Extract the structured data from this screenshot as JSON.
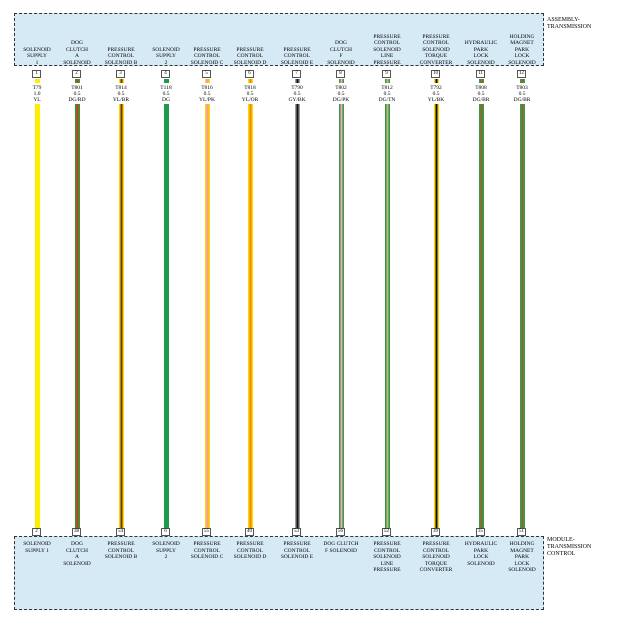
{
  "top_assembly": "ASSEMBLY-\nTRANSMISSION",
  "bottom_module": "MODULE-\nTRANSMISSION\nCONTROL",
  "circuits": [
    {
      "top_label": "SOLENOID\nSUPPLY\n1",
      "top_pin": "1",
      "circuit": "T79",
      "gauge": "1.0",
      "color_code": "YL",
      "bottom_pin": "2",
      "bottom_label": "SOLENOID\nSUPPLY 1",
      "base_color": "#ffee00",
      "stripe_color": "#ffee00"
    },
    {
      "top_label": "DOG\nCLUTCH\nA\nSOLENOID",
      "top_pin": "2",
      "circuit": "T801",
      "gauge": "0.5",
      "color_code": "DG/RD",
      "bottom_pin": "38",
      "bottom_label": "DOG\nCLUTCH\nA\nSOLENOID",
      "base_color": "#2e9a3a",
      "stripe_color": "#d23a1e"
    },
    {
      "top_label": "PRESSURE\nCONTROL\nSOLENOID B",
      "top_pin": "3",
      "circuit": "T814",
      "gauge": "0.5",
      "color_code": "YL/BR",
      "bottom_pin": "54",
      "bottom_label": "PRESSURE\nCONTROL\nSOLENOID B",
      "base_color": "#ffd400",
      "stripe_color": "#6b3a10"
    },
    {
      "top_label": "SOLENOID\nSUPPLY\n2",
      "top_pin": "4",
      "circuit": "T118",
      "gauge": "0.5",
      "color_code": "DG",
      "bottom_pin": "6",
      "bottom_label": "SOLENOID\nSUPPLY\n2",
      "base_color": "#1e9a4a",
      "stripe_color": "#1e9a4a"
    },
    {
      "top_label": "PRESSURE\nCONTROL\nSOLENOID C",
      "top_pin": "5",
      "circuit": "T816",
      "gauge": "0.5",
      "color_code": "YL/PK",
      "bottom_pin": "55",
      "bottom_label": "PRESSURE\nCONTROL\nSOLENOID C",
      "base_color": "#ffd400",
      "stripe_color": "#f29ab0"
    },
    {
      "top_label": "PRESSURE\nCONTROL\nSOLENOID D",
      "top_pin": "6",
      "circuit": "T818",
      "gauge": "0.5",
      "color_code": "YL/OR",
      "bottom_pin": "40",
      "bottom_label": "PRESSURE\nCONTROL\nSOLENOID D",
      "base_color": "#ffd400",
      "stripe_color": "#f08a00"
    },
    {
      "top_label": "PRESSURE\nCONTROL\nSOLENOID E",
      "top_pin": "7",
      "circuit": "T790",
      "gauge": "0.5",
      "color_code": "GY/BK",
      "bottom_pin": "53",
      "bottom_label": "PRESSURE\nCONTROL\nSOLENOID E",
      "base_color": "#9a9a9a",
      "stripe_color": "#111111"
    },
    {
      "top_label": "DOG\nCLUTCH\nF\nSOLENOID",
      "top_pin": "8",
      "circuit": "T802",
      "gauge": "0.5",
      "color_code": "DG/PK",
      "bottom_pin": "56",
      "bottom_label": "DOG CLUTCH\nF SOLENOID",
      "base_color": "#3a9a4a",
      "stripe_color": "#f2a6b8"
    },
    {
      "top_label": "PRESSURE\nCONTROL\nSOLENOID\nLINE\nPRESSURE",
      "top_pin": "9",
      "circuit": "T812",
      "gauge": "0.5",
      "color_code": "DG/TN",
      "bottom_pin": "52",
      "bottom_label": "PRESSURE\nCONTROL\nSOLENOID\nLINE\nPRESSURE",
      "base_color": "#2e9a3a",
      "stripe_color": "#c8b48a"
    },
    {
      "top_label": "PRESSURE\nCONTROL\nSOLENOID\nTORQUE\nCONVERTER",
      "top_pin": "10",
      "circuit": "T792",
      "gauge": "0.5",
      "color_code": "YL/BK",
      "bottom_pin": "39",
      "bottom_label": "PRESSURE\nCONTROL\nSOLENOID\nTORQUE\nCONVERTER",
      "base_color": "#ffd400",
      "stripe_color": "#111111"
    },
    {
      "top_label": "HYDRAULIC\nPARK\nLOCK\nSOLENOID",
      "top_pin": "11",
      "circuit": "T808",
      "gauge": "0.5",
      "color_code": "DG/BR",
      "bottom_pin": "35",
      "bottom_label": "HYDRAULIC\nPARK\nLOCK\nSOLENOID",
      "base_color": "#3a9a4a",
      "stripe_color": "#8b6a2a"
    },
    {
      "top_label": "HOLDING\nMAGNET\nPARK\nLOCK\nSOLENOID",
      "top_pin": "12",
      "circuit": "T803",
      "gauge": "0.5",
      "color_code": "DG/BR",
      "bottom_pin": "51",
      "bottom_label": "HOLDING\nMAGNET\nPARK\nLOCK\nSOLENOID",
      "base_color": "#3a9a4a",
      "stripe_color": "#8b6a2a"
    }
  ]
}
